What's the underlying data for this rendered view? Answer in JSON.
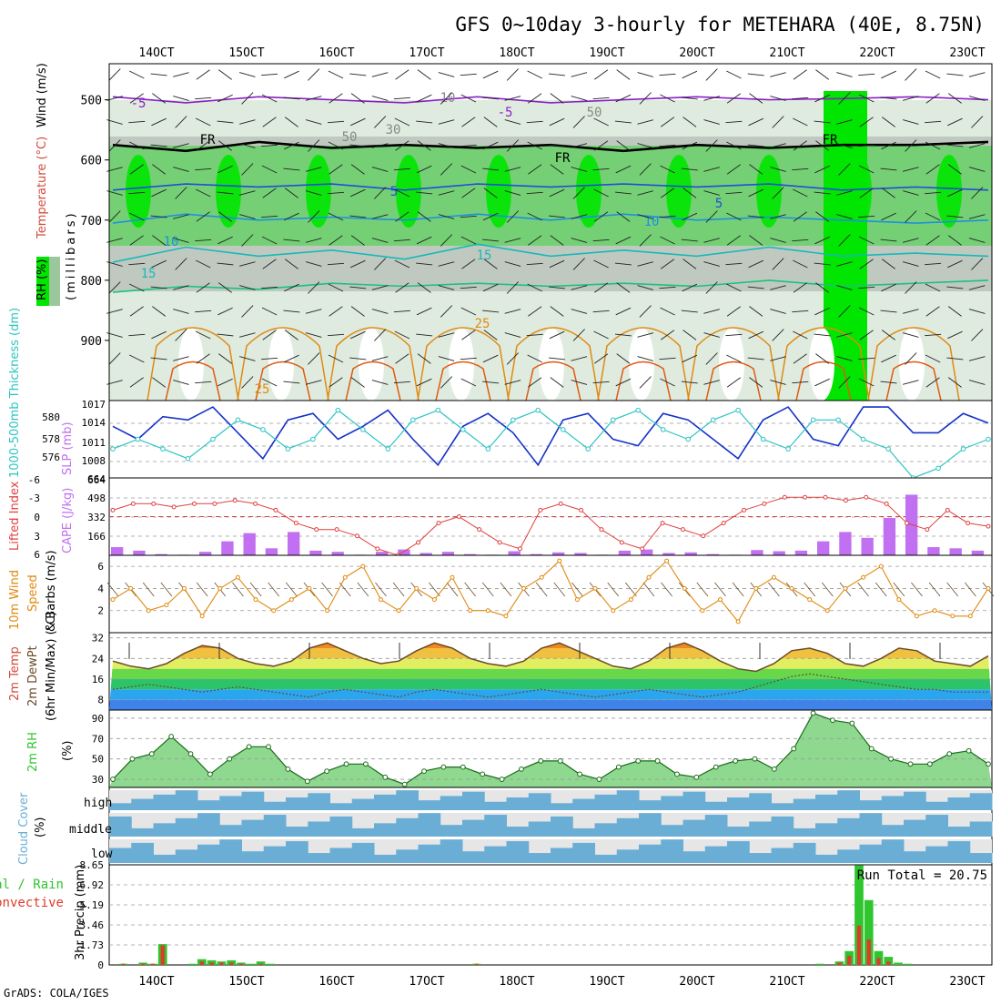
{
  "title": "GFS 0~10day 3-hourly for METEHARA (40E, 8.75N)",
  "footer": "GrADS: COLA/IGES",
  "x_ticks": [
    "14OCT",
    "15OCT",
    "16OCT",
    "17OCT",
    "18OCT",
    "19OCT",
    "20OCT",
    "21OCT",
    "22OCT",
    "23OCT"
  ],
  "colors": {
    "rh_light": "#dbe9db",
    "rh_mid": "#9cc79c",
    "rh_grey": "#bcc5bc",
    "rh_green": "#6dd06d",
    "rh_bright": "#00e600",
    "temp_m5": "#8a1fc9",
    "temp_fr": "#000000",
    "temp_5": "#1e4fd6",
    "temp_10": "#1e90e0",
    "temp_15": "#18b8b8",
    "temp_20": "#18c47a",
    "temp_25": "#e08a10",
    "temp_30": "#e05a10",
    "slp": "#1532c8",
    "thickness": "#2cc4c4",
    "li": "#e04040",
    "cape": "#c070f0",
    "wind10": "#e08a10",
    "barb": "#6b4a2a",
    "precip_total": "#2ec52e",
    "precip_conv": "#e03a2a",
    "cloud": "#6aaed6",
    "cloud_gap": "#e6e6e6"
  },
  "chart_data": [
    {
      "type": "heatmap",
      "name": "cross-section",
      "title": "RH (%) / Temperature (°C) / Wind (m/s)",
      "ylabel": "(millibars)",
      "yticks": [
        500,
        600,
        700,
        800,
        900
      ],
      "ylim": [
        1000,
        440
      ],
      "labels": {
        "rh": "RH (%)",
        "temperature": "Temperature (°C)",
        "wind": "Wind (m/s)",
        "millibars": "(millibars)"
      },
      "contour_labels": [
        "-5",
        "-5",
        "FR",
        "FR",
        "FR",
        "5",
        "5",
        "10",
        "10",
        "15",
        "15",
        "25",
        "25",
        "50",
        "50",
        "30",
        "10"
      ],
      "isotherms": [
        {
          "label": "-5",
          "p": [
            495,
            505,
            495,
            500,
            505,
            495,
            505,
            500,
            495,
            500,
            498,
            495,
            500
          ]
        },
        {
          "label": "FR",
          "p": [
            575,
            585,
            570,
            580,
            575,
            580,
            575,
            585,
            575,
            580,
            575,
            575,
            570
          ]
        },
        {
          "label": "5",
          "p": [
            650,
            640,
            645,
            640,
            650,
            640,
            645,
            640,
            645,
            640,
            650,
            645,
            650
          ]
        },
        {
          "label": "10",
          "p": [
            705,
            690,
            700,
            695,
            700,
            690,
            700,
            690,
            700,
            695,
            700,
            705,
            700
          ]
        },
        {
          "label": "15",
          "p": [
            770,
            745,
            760,
            750,
            765,
            740,
            760,
            750,
            760,
            745,
            760,
            755,
            760
          ]
        },
        {
          "label": "20",
          "p": [
            820,
            810,
            815,
            805,
            810,
            805,
            810,
            805,
            810,
            800,
            810,
            805,
            800
          ]
        }
      ]
    },
    {
      "type": "line",
      "name": "SLP / Thickness",
      "labels": {
        "left": "1000-500mb Thickness (dm)",
        "right": "SLP (mb)"
      },
      "slp_ticks": [
        "1017",
        "1014",
        "1011",
        "1008"
      ],
      "thickness_ticks": [
        "580",
        "578",
        "576"
      ],
      "slp_ylim": [
        1005,
        1017
      ],
      "thickness_ylim": [
        574,
        582
      ],
      "slp": [
        1013,
        1011,
        1014.5,
        1014,
        1016,
        1012,
        1008,
        1014,
        1015,
        1011,
        1013,
        1015.5,
        1011,
        1007,
        1013,
        1015,
        1012,
        1007,
        1014,
        1015,
        1011,
        1010,
        1015,
        1014,
        1011,
        1008,
        1014,
        1016,
        1011,
        1010,
        1016,
        1016,
        1012,
        1012,
        1015,
        1013.5
      ],
      "thickness": [
        577,
        578,
        577,
        576,
        578,
        580,
        579,
        577,
        578,
        581,
        579,
        577,
        580,
        581,
        579,
        577,
        580,
        581,
        579,
        577,
        580,
        581,
        579,
        578,
        580,
        581,
        578,
        577,
        580,
        580,
        578,
        577,
        574,
        575,
        577,
        578
      ]
    },
    {
      "type": "bar",
      "name": "Lifted Index / CAPE",
      "labels": {
        "left": "Lifted Index",
        "right": "CAPE (J/kg)"
      },
      "li_ticks": [
        "-6",
        "-3",
        "0",
        "3",
        "6"
      ],
      "cape_ticks": [
        "664",
        "498",
        "332",
        "166"
      ],
      "li_ylim": [
        6,
        -6
      ],
      "cape_ylim": [
        0,
        664
      ],
      "lifted_index": [
        -1,
        -2,
        -2,
        -1.5,
        -2,
        -2,
        -2.5,
        -2,
        -1,
        1,
        2,
        2,
        3,
        5,
        6,
        4,
        1,
        0,
        2,
        4,
        5,
        -1,
        -2,
        -1,
        2,
        4,
        5,
        1,
        2,
        3,
        1,
        -1,
        -2,
        -3,
        -3,
        -3,
        -2.5,
        -3,
        -2,
        1,
        2,
        -1,
        1,
        1.5
      ],
      "cape": [
        70,
        40,
        10,
        5,
        30,
        120,
        190,
        60,
        200,
        40,
        30,
        5,
        30,
        50,
        20,
        30,
        10,
        5,
        35,
        10,
        25,
        20,
        5,
        40,
        50,
        20,
        25,
        10,
        5,
        45,
        35,
        40,
        120,
        200,
        150,
        320,
        520,
        70,
        60,
        40
      ]
    },
    {
      "type": "line",
      "name": "10m Wind",
      "labels": {
        "left": "10m Wind",
        "middle": "Speed",
        "right": "& Barbs (m/s)"
      },
      "ticks": [
        "6",
        "4",
        "2"
      ],
      "ylim": [
        0,
        7
      ],
      "speed": [
        3,
        4,
        2,
        2.5,
        4,
        1.5,
        4,
        5,
        3,
        2,
        3,
        4,
        2,
        5,
        6,
        3,
        2,
        4,
        3,
        5,
        2,
        2,
        1.5,
        4,
        5,
        6.5,
        3,
        4,
        2,
        3,
        5,
        6.5,
        4,
        2,
        3,
        1,
        4,
        5,
        4,
        3,
        2,
        4,
        5,
        6,
        3,
        1.5,
        2,
        1.5,
        1.5,
        4
      ]
    },
    {
      "type": "area",
      "name": "2m Temp",
      "labels": {
        "left": "2m Temp",
        "middle": "2m DewPt",
        "right": "(6hr Min/Max) (°C)"
      },
      "ticks": [
        "32",
        "24",
        "16",
        "8"
      ],
      "ylim": [
        4,
        34
      ],
      "temp": [
        23,
        21,
        20,
        22,
        26,
        29,
        28,
        24,
        22,
        21,
        23,
        28,
        30,
        27,
        24,
        22,
        23,
        27,
        30,
        28,
        24,
        22,
        21,
        23,
        28,
        30,
        27,
        24,
        21,
        20,
        23,
        28,
        30,
        27,
        23,
        20,
        19,
        22,
        27,
        28,
        26,
        22,
        21,
        24,
        28,
        27,
        23,
        22,
        21,
        25
      ],
      "dewpoint": [
        12,
        13,
        14,
        13,
        12,
        11,
        12,
        13,
        12,
        11,
        10,
        9,
        11,
        12,
        11,
        10,
        9,
        11,
        12,
        11,
        10,
        9,
        10,
        11,
        12,
        11,
        10,
        9,
        10,
        11,
        12,
        11,
        10,
        9,
        10,
        11,
        13,
        15,
        17,
        18,
        17,
        16,
        15,
        14,
        13,
        12,
        12,
        11,
        11,
        11
      ]
    },
    {
      "type": "area",
      "name": "2m RH",
      "labels": {
        "left": "2m RH",
        "right": "(%)"
      },
      "ticks": [
        "90",
        "70",
        "50",
        "30"
      ],
      "ylim": [
        22,
        98
      ],
      "rh": [
        30,
        50,
        55,
        72,
        55,
        35,
        50,
        62,
        62,
        40,
        28,
        38,
        45,
        45,
        32,
        25,
        38,
        42,
        42,
        35,
        30,
        40,
        48,
        48,
        35,
        30,
        42,
        48,
        48,
        35,
        32,
        42,
        48,
        50,
        40,
        60,
        95,
        88,
        85,
        60,
        50,
        45,
        45,
        55,
        58,
        45
      ]
    },
    {
      "type": "heatmap",
      "name": "Cloud Cover",
      "labels": {
        "left": "Cloud Cover",
        "right": "(%)",
        "high": "high",
        "middle": "middle",
        "low": "low"
      }
    },
    {
      "type": "bar",
      "name": "3hr Precip",
      "labels": {
        "total": "Total / Rain",
        "convective": "Convective",
        "axis": "3hr Precip (mm)"
      },
      "ticks": [
        "8.65",
        "6.92",
        "5.19",
        "3.46",
        "1.73",
        "0"
      ],
      "ylim": [
        0,
        8.65
      ],
      "run_total": "Run Total = 20.75",
      "total": [
        0,
        0.1,
        0,
        0.2,
        0.1,
        1.8,
        0,
        0,
        0.1,
        0.5,
        0.4,
        0.3,
        0.4,
        0.2,
        0.1,
        0.3,
        0.1,
        0,
        0,
        0,
        0,
        0,
        0,
        0,
        0,
        0,
        0,
        0,
        0,
        0,
        0,
        0,
        0,
        0,
        0,
        0,
        0,
        0.1,
        0,
        0,
        0,
        0,
        0,
        0,
        0,
        0,
        0,
        0,
        0,
        0,
        0,
        0,
        0,
        0,
        0,
        0,
        0,
        0,
        0,
        0,
        0,
        0,
        0,
        0,
        0,
        0,
        0,
        0,
        0,
        0,
        0,
        0,
        0.1,
        0,
        0.3,
        1.2,
        8.6,
        5.6,
        1.2,
        0.7,
        0.2,
        0.1,
        0,
        0,
        0,
        0,
        0,
        0,
        0,
        0
      ],
      "convective": [
        0,
        0.1,
        0,
        0.1,
        0.1,
        1.7,
        0,
        0,
        0,
        0.3,
        0.2,
        0.2,
        0.2,
        0.1,
        0,
        0.1,
        0,
        0,
        0,
        0,
        0,
        0,
        0,
        0,
        0,
        0,
        0,
        0,
        0,
        0,
        0,
        0,
        0,
        0,
        0,
        0,
        0,
        0.1,
        0,
        0,
        0,
        0,
        0,
        0,
        0,
        0,
        0,
        0,
        0,
        0,
        0,
        0,
        0,
        0,
        0,
        0,
        0,
        0,
        0,
        0,
        0,
        0,
        0,
        0,
        0,
        0,
        0,
        0,
        0,
        0,
        0,
        0,
        0,
        0,
        0.2,
        0.8,
        3.4,
        2.2,
        0.6,
        0.3,
        0,
        0,
        0,
        0,
        0,
        0,
        0,
        0,
        0,
        0
      ]
    }
  ]
}
